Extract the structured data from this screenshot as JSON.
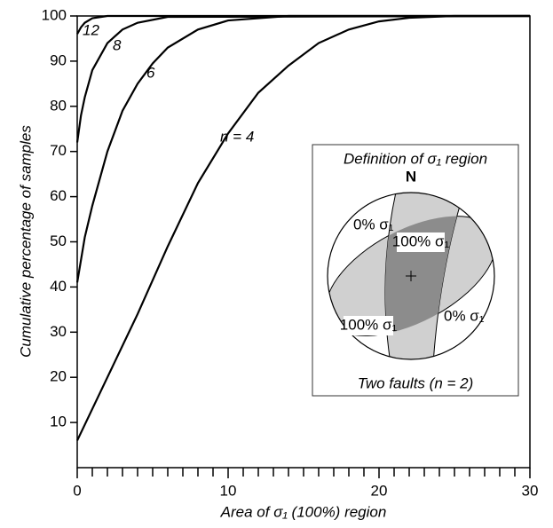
{
  "chart_data": {
    "type": "line",
    "x_label": "Area of σ₁ (100%) region",
    "y_label": "Cumulative percentage of samples",
    "xlim": [
      0,
      30
    ],
    "xticks": [
      0,
      10,
      20,
      30
    ],
    "xminorticks": [
      1,
      2,
      3,
      4,
      5,
      6,
      7,
      8,
      9,
      11,
      12,
      13,
      14,
      15,
      16,
      17,
      18,
      19,
      21,
      22,
      23,
      24,
      25,
      26,
      27,
      28,
      29
    ],
    "ylim": [
      0,
      100
    ],
    "yticks": [
      10,
      20,
      30,
      40,
      50,
      60,
      70,
      80,
      90,
      100
    ],
    "series": [
      {
        "name": "n = 4",
        "color": "#000000",
        "x": [
          0,
          2,
          4,
          6,
          8,
          10,
          12,
          14,
          16,
          18,
          20,
          22,
          25,
          30
        ],
        "values": [
          6,
          20,
          34,
          49,
          63,
          74,
          83,
          89,
          94,
          97,
          98.8,
          99.6,
          100,
          100
        ]
      },
      {
        "name": "6",
        "color": "#000000",
        "x": [
          0,
          0.5,
          1,
          2,
          3,
          4,
          5,
          6,
          8,
          10,
          14,
          30
        ],
        "values": [
          41,
          51,
          58,
          70,
          79,
          85,
          89.5,
          93,
          97,
          99,
          100,
          100
        ]
      },
      {
        "name": "8",
        "color": "#000000",
        "x": [
          0,
          0.25,
          0.5,
          1,
          2,
          3,
          4,
          6,
          30
        ],
        "values": [
          72,
          78,
          82,
          88,
          94,
          97,
          98.5,
          99.8,
          100
        ]
      },
      {
        "name": "12",
        "color": "#000000",
        "x": [
          0,
          0.25,
          0.5,
          1,
          2,
          30
        ],
        "values": [
          96,
          97.5,
          98.5,
          99.5,
          100,
          100
        ]
      }
    ],
    "inset": {
      "title": "Definition of σ₁ region",
      "north": "N",
      "zero_label_1": "0% σ₁",
      "zero_label_2": "0% σ₁",
      "full_label_1": "100% σ₁",
      "full_label_2": "100% σ₁",
      "caption": "Two faults (n = 2)"
    }
  }
}
